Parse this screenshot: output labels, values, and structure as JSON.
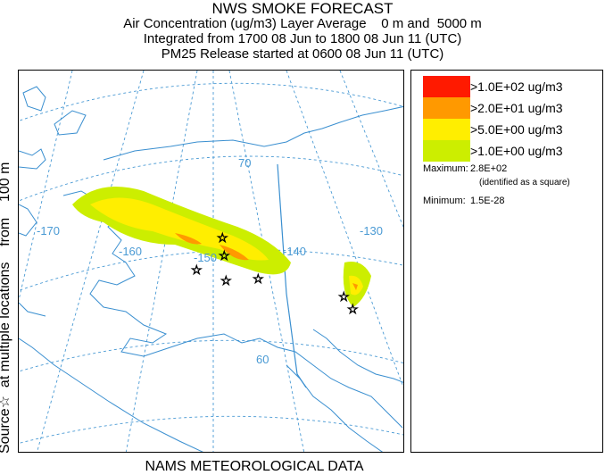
{
  "header": {
    "title": "NWS SMOKE FORECAST",
    "line2": "Air Concentration (ug/m3) Layer Average    0 m and  5000 m",
    "line3": "Integrated from 1700 08 Jun to 1800 08 Jun 11 (UTC)",
    "line4": "PM25 Release started at 0600 08 Jun 11 (UTC)"
  },
  "side_label": "Source☆  at multiple locations    from    100 m",
  "footer": "NAMS METEOROLOGICAL DATA",
  "legend": {
    "items": [
      {
        "label": ">1.0E+02 ug/m3",
        "color": "#ff1a00"
      },
      {
        "label": ">2.0E+01 ug/m3",
        "color": "#ff9900"
      },
      {
        "label": ">5.0E+00 ug/m3",
        "color": "#ffee00"
      },
      {
        "label": ">1.0E+00 ug/m3",
        "color": "#ccee00"
      }
    ],
    "maximum_label": "Maximum:",
    "maximum_value": "2.8E+02",
    "maximum_note": "(identified as a square)",
    "minimum_label": "Minimum:",
    "minimum_value": "1.5E-28"
  },
  "map": {
    "longitude_labels": [
      "-170",
      "-160",
      "-150",
      "-140",
      "-130"
    ],
    "latitude_labels": [
      "70",
      "60"
    ],
    "graticule_color": "#4a9ad4",
    "coast_color": "#3a8fd0",
    "border_color": "#3a8fd0"
  }
}
